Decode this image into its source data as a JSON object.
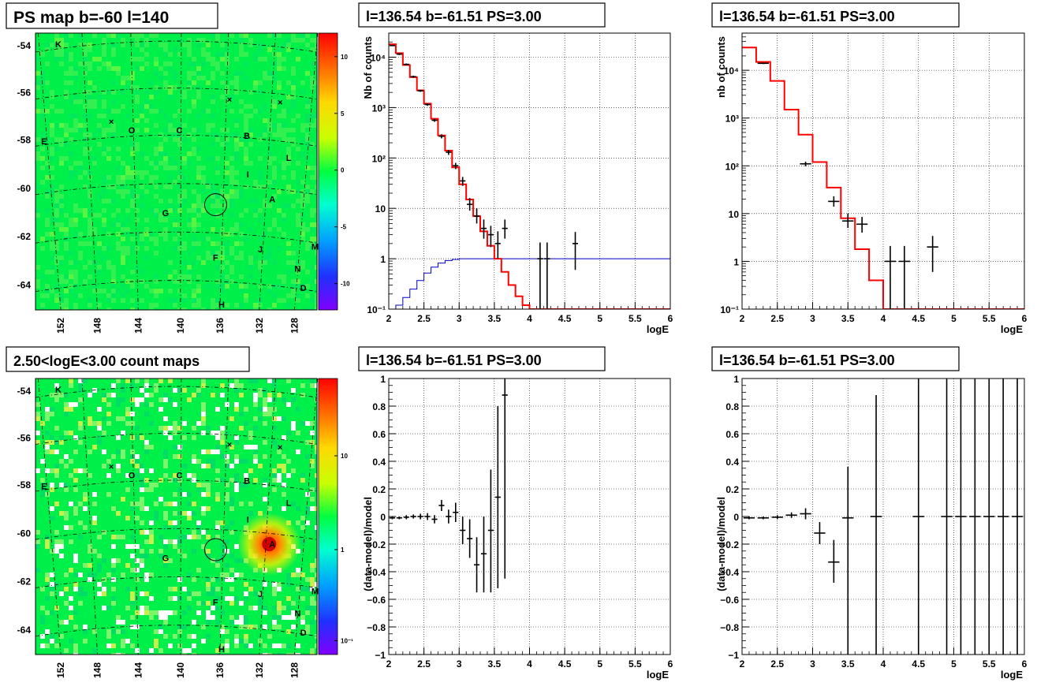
{
  "colors": {
    "map_green": "#00f04a",
    "model_red": "#ff0000",
    "blue_curve": "#0000c8",
    "hot_spot": "#ff2a00"
  },
  "maps": [
    {
      "title": "PS map b=-60 l=140",
      "lat_ticks": [
        "-54",
        "-56",
        "-58",
        "-60",
        "-62",
        "-64"
      ],
      "lon_ticks": [
        "152",
        "148",
        "144",
        "140",
        "136",
        "132",
        "128"
      ],
      "colorbar_ticks": [
        "10",
        "5",
        "0",
        "-5",
        "-10"
      ],
      "labels": [
        "K",
        "O",
        "C",
        "E",
        "B",
        "L",
        "I",
        "A",
        "G",
        "M",
        "F",
        "J",
        "N",
        "D",
        "H"
      ]
    },
    {
      "title": "2.50<logE<3.00 count maps",
      "lat_ticks": [
        "-54",
        "-56",
        "-58",
        "-60",
        "-62",
        "-64"
      ],
      "lon_ticks": [
        "152",
        "148",
        "144",
        "140",
        "136",
        "132",
        "128"
      ],
      "colorbar_ticks": [
        "10",
        "1",
        "10⁻¹"
      ],
      "labels": [
        "K",
        "O",
        "C",
        "E",
        "B",
        "L",
        "I",
        "A",
        "G",
        "M",
        "F",
        "J",
        "N",
        "D",
        "H"
      ]
    }
  ],
  "chart_data": [
    {
      "type": "line",
      "title": "l=136.54 b=-61.51 PS=3.00",
      "xlabel": "logE",
      "ylabel": "Nb of counts",
      "xlim": [
        2,
        6
      ],
      "ylim": [
        0.1,
        30000
      ],
      "ylog": true,
      "grid": true,
      "x_ticks": [
        "2",
        "2.5",
        "3",
        "3.5",
        "4",
        "4.5",
        "5",
        "5.5",
        "6"
      ],
      "y_ticks": [
        "10⁻¹",
        "1",
        "10",
        "10²",
        "10³",
        "10⁴"
      ],
      "model_step": {
        "edges": [
          2,
          2.1,
          2.2,
          2.3,
          2.4,
          2.5,
          2.6,
          2.7,
          2.8,
          2.9,
          3.0,
          3.1,
          3.2,
          3.3,
          3.4,
          3.5,
          3.6,
          3.7,
          3.8,
          3.9,
          4.0,
          4.1,
          4.2,
          6.0
        ],
        "values": [
          18000,
          12000,
          7000,
          4000,
          2200,
          1200,
          600,
          280,
          140,
          65,
          30,
          15,
          7,
          3.5,
          1.8,
          1.0,
          0.55,
          0.3,
          0.18,
          0.12,
          0.1,
          0.1,
          0.1
        ]
      },
      "blue_curve": {
        "x": [
          2.0,
          2.1,
          2.2,
          2.3,
          2.4,
          2.5,
          2.6,
          2.7,
          2.8,
          2.9,
          3.0,
          3.2,
          3.4,
          3.6,
          6.0
        ],
        "y": [
          0.1,
          0.12,
          0.17,
          0.25,
          0.37,
          0.52,
          0.68,
          0.82,
          0.92,
          0.97,
          1.0,
          1.0,
          1.0,
          1.0,
          1.0
        ]
      },
      "points": [
        {
          "x": 2.05,
          "y": 17000,
          "lo": 16500,
          "hi": 17500
        },
        {
          "x": 2.15,
          "y": 11500,
          "lo": 11000,
          "hi": 12000
        },
        {
          "x": 2.25,
          "y": 7200,
          "lo": 6900,
          "hi": 7500
        },
        {
          "x": 2.35,
          "y": 4100,
          "lo": 3900,
          "hi": 4300
        },
        {
          "x": 2.45,
          "y": 2150,
          "lo": 2050,
          "hi": 2250
        },
        {
          "x": 2.55,
          "y": 1150,
          "lo": 1080,
          "hi": 1220
        },
        {
          "x": 2.65,
          "y": 560,
          "lo": 520,
          "hi": 600
        },
        {
          "x": 2.75,
          "y": 270,
          "lo": 245,
          "hi": 295
        },
        {
          "x": 2.85,
          "y": 130,
          "lo": 115,
          "hi": 145
        },
        {
          "x": 2.95,
          "y": 70,
          "lo": 60,
          "hi": 80
        },
        {
          "x": 3.05,
          "y": 35,
          "lo": 28,
          "hi": 42
        },
        {
          "x": 3.15,
          "y": 12,
          "lo": 9,
          "hi": 16
        },
        {
          "x": 3.25,
          "y": 7,
          "lo": 5,
          "hi": 10
        },
        {
          "x": 3.35,
          "y": 4,
          "lo": 2.5,
          "hi": 6
        },
        {
          "x": 3.45,
          "y": 3,
          "lo": 1.7,
          "hi": 4.5
        },
        {
          "x": 3.55,
          "y": 2,
          "lo": 1,
          "hi": 3.5
        },
        {
          "x": 3.65,
          "y": 4,
          "lo": 2.5,
          "hi": 6
        },
        {
          "x": 4.15,
          "y": 1,
          "lo": 0.1,
          "hi": 2.1
        },
        {
          "x": 4.25,
          "y": 1,
          "lo": 0.1,
          "hi": 2.1
        },
        {
          "x": 4.65,
          "y": 2,
          "lo": 0.6,
          "hi": 3.4
        }
      ]
    },
    {
      "type": "line",
      "title": "l=136.54 b=-61.51 PS=3.00",
      "xlabel": "logE",
      "ylabel": "nb of counts",
      "xlim": [
        2,
        6
      ],
      "ylim": [
        0.1,
        60000
      ],
      "ylog": true,
      "grid": true,
      "x_ticks": [
        "2",
        "2.5",
        "3",
        "3.5",
        "4",
        "4.5",
        "5",
        "5.5",
        "6"
      ],
      "y_ticks": [
        "10⁻¹",
        "1",
        "10",
        "10²",
        "10³",
        "10⁴"
      ],
      "model_step": {
        "edges": [
          2,
          2.2,
          2.4,
          2.6,
          2.8,
          3.0,
          3.2,
          3.4,
          3.6,
          3.8,
          4.0,
          4.2,
          6.0
        ],
        "values": [
          30000,
          15000,
          6000,
          1500,
          450,
          120,
          35,
          8,
          1.8,
          0.4,
          0.1,
          0.1
        ]
      },
      "points": [
        {
          "x": 2.3,
          "y": 14000,
          "lo": 13500,
          "hi": 14500
        },
        {
          "x": 2.9,
          "y": 110,
          "lo": 98,
          "hi": 122
        },
        {
          "x": 3.3,
          "y": 18,
          "lo": 14,
          "hi": 23
        },
        {
          "x": 3.5,
          "y": 7,
          "lo": 5,
          "hi": 10
        },
        {
          "x": 3.7,
          "y": 6,
          "lo": 4,
          "hi": 8.5
        },
        {
          "x": 4.1,
          "y": 1,
          "lo": 0.1,
          "hi": 2.1
        },
        {
          "x": 4.3,
          "y": 1,
          "lo": 0.1,
          "hi": 2.1
        },
        {
          "x": 4.7,
          "y": 2,
          "lo": 0.6,
          "hi": 3.4
        }
      ]
    },
    {
      "type": "scatter",
      "title": "l=136.54 b=-61.51 PS=3.00",
      "xlabel": "logE",
      "ylabel": "(data-model)/model",
      "xlim": [
        2,
        6
      ],
      "ylim": [
        -1,
        1
      ],
      "ylog": false,
      "grid": true,
      "x_ticks": [
        "2",
        "2.5",
        "3",
        "3.5",
        "4",
        "4.5",
        "5",
        "5.5",
        "6"
      ],
      "y_ticks": [
        "−1",
        "−0.8",
        "−0.6",
        "−0.4",
        "−0.2",
        "0",
        "0.2",
        "0.4",
        "0.6",
        "0.8",
        "1"
      ],
      "points": [
        {
          "x": 2.05,
          "y": -0.01,
          "lo": -0.02,
          "hi": 0.0
        },
        {
          "x": 2.15,
          "y": -0.01,
          "lo": -0.02,
          "hi": 0.0
        },
        {
          "x": 2.25,
          "y": -0.005,
          "lo": -0.02,
          "hi": 0.01
        },
        {
          "x": 2.35,
          "y": 0.0,
          "lo": -0.015,
          "hi": 0.015
        },
        {
          "x": 2.45,
          "y": 0.0,
          "lo": -0.02,
          "hi": 0.02
        },
        {
          "x": 2.55,
          "y": 0.0,
          "lo": -0.025,
          "hi": 0.025
        },
        {
          "x": 2.65,
          "y": -0.02,
          "lo": -0.05,
          "hi": 0.01
        },
        {
          "x": 2.75,
          "y": 0.08,
          "lo": 0.04,
          "hi": 0.12
        },
        {
          "x": 2.85,
          "y": 0.0,
          "lo": -0.05,
          "hi": 0.05
        },
        {
          "x": 2.95,
          "y": 0.03,
          "lo": -0.04,
          "hi": 0.1
        },
        {
          "x": 3.05,
          "y": -0.1,
          "lo": -0.2,
          "hi": 0.0
        },
        {
          "x": 3.15,
          "y": -0.16,
          "lo": -0.3,
          "hi": -0.02
        },
        {
          "x": 3.25,
          "y": -0.35,
          "lo": -0.55,
          "hi": -0.15
        },
        {
          "x": 3.35,
          "y": -0.27,
          "lo": -0.55,
          "hi": 0.0
        },
        {
          "x": 3.45,
          "y": -0.1,
          "lo": -0.55,
          "hi": 0.34
        },
        {
          "x": 3.55,
          "y": 0.14,
          "lo": -0.52,
          "hi": 0.8
        },
        {
          "x": 3.65,
          "y": 0.88,
          "lo": -0.45,
          "hi": 1.0
        }
      ]
    },
    {
      "type": "scatter",
      "title": "l=136.54 b=-61.51 PS=3.00",
      "xlabel": "logE",
      "ylabel": "(data-model)/model",
      "xlim": [
        2,
        6
      ],
      "ylim": [
        -1,
        1
      ],
      "ylog": false,
      "grid": true,
      "x_ticks": [
        "2",
        "2.5",
        "3",
        "3.5",
        "4",
        "4.5",
        "5",
        "5.5",
        "6"
      ],
      "y_ticks": [
        "−1",
        "−0.8",
        "−0.6",
        "−0.4",
        "−0.2",
        "0",
        "0.2",
        "0.4",
        "0.6",
        "0.8",
        "1"
      ],
      "points": [
        {
          "x": 2.1,
          "y": -0.01,
          "lo": -0.02,
          "hi": 0.0
        },
        {
          "x": 2.3,
          "y": -0.01,
          "lo": -0.02,
          "hi": 0.0
        },
        {
          "x": 2.5,
          "y": -0.005,
          "lo": -0.02,
          "hi": 0.01
        },
        {
          "x": 2.7,
          "y": 0.01,
          "lo": -0.01,
          "hi": 0.03
        },
        {
          "x": 2.9,
          "y": 0.02,
          "lo": -0.02,
          "hi": 0.06
        },
        {
          "x": 3.1,
          "y": -0.12,
          "lo": -0.2,
          "hi": -0.04
        },
        {
          "x": 3.3,
          "y": -0.33,
          "lo": -0.48,
          "hi": -0.17
        },
        {
          "x": 3.5,
          "y": -0.01,
          "lo": -1.0,
          "hi": 0.36
        },
        {
          "x": 3.9,
          "y": 0.0,
          "lo": -1.0,
          "hi": 0.88
        },
        {
          "x": 4.5,
          "y": 0.0,
          "lo": -1.0,
          "hi": 1.0
        },
        {
          "x": 4.9,
          "y": 0.0,
          "lo": -1.0,
          "hi": 1.0
        },
        {
          "x": 5.1,
          "y": 0.0,
          "lo": -1.0,
          "hi": 1.0
        },
        {
          "x": 5.3,
          "y": 0.0,
          "lo": -1.0,
          "hi": 1.0
        },
        {
          "x": 5.5,
          "y": 0.0,
          "lo": -1.0,
          "hi": 1.0
        },
        {
          "x": 5.7,
          "y": 0.0,
          "lo": -1.0,
          "hi": 1.0
        },
        {
          "x": 5.9,
          "y": 0.0,
          "lo": -1.0,
          "hi": 1.0
        }
      ]
    }
  ]
}
